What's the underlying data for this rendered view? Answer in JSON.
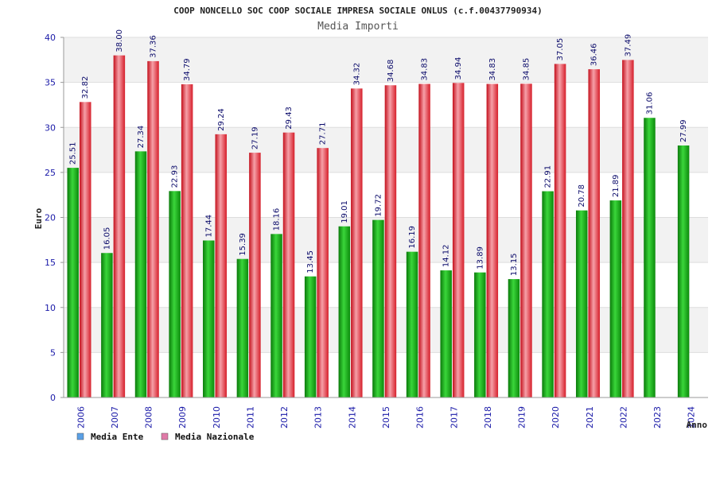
{
  "chart_data": {
    "type": "bar",
    "title": "COOP NONCELLO SOC COOP SOCIALE IMPRESA SOCIALE ONLUS (c.f.00437790934)",
    "subtitle": "Media Importi",
    "xlabel": "Anno",
    "ylabel": "Euro",
    "ylim": [
      0,
      40
    ],
    "yticks": [
      0,
      5,
      10,
      15,
      20,
      25,
      30,
      35,
      40
    ],
    "categories": [
      "2006",
      "2007",
      "2008",
      "2009",
      "2010",
      "2011",
      "2012",
      "2013",
      "2014",
      "2015",
      "2016",
      "2017",
      "2018",
      "2019",
      "2020",
      "2021",
      "2022",
      "2023",
      "2024"
    ],
    "series": [
      {
        "name": "Media Ente",
        "color": "#1fae1f",
        "legend_color": "#5aa0e6",
        "values": [
          25.51,
          16.05,
          27.34,
          22.93,
          17.44,
          15.39,
          18.16,
          13.45,
          19.01,
          19.72,
          16.19,
          14.12,
          13.89,
          13.15,
          22.91,
          20.78,
          21.89,
          31.06,
          27.99
        ],
        "labels": [
          "25.51",
          "16.05",
          "27.34",
          "22.93",
          "17.44",
          "15.39",
          "18.16",
          "13.45",
          "19.01",
          "19.72",
          "16.19",
          "14.12",
          "13.89",
          "13.15",
          "22.91",
          "20.78",
          "21.89",
          "31.06",
          "27.99"
        ]
      },
      {
        "name": "Media Nazionale",
        "color": "#e8303c",
        "legend_color": "#e07aa8",
        "values": [
          32.82,
          38.0,
          37.36,
          34.79,
          29.24,
          27.19,
          29.43,
          27.71,
          34.32,
          34.68,
          34.83,
          34.94,
          34.83,
          34.85,
          37.05,
          36.46,
          37.49,
          null,
          null
        ],
        "labels": [
          "32.82",
          "38.00",
          "37.36",
          "34.79",
          "29.24",
          "27.19",
          "29.43",
          "27.71",
          "34.32",
          "34.68",
          "34.83",
          "34.94",
          "34.83",
          "34.85",
          "37.05",
          "36.46",
          "37.49",
          null,
          null
        ]
      }
    ],
    "grid": true,
    "legend_position": "bottom-left"
  }
}
